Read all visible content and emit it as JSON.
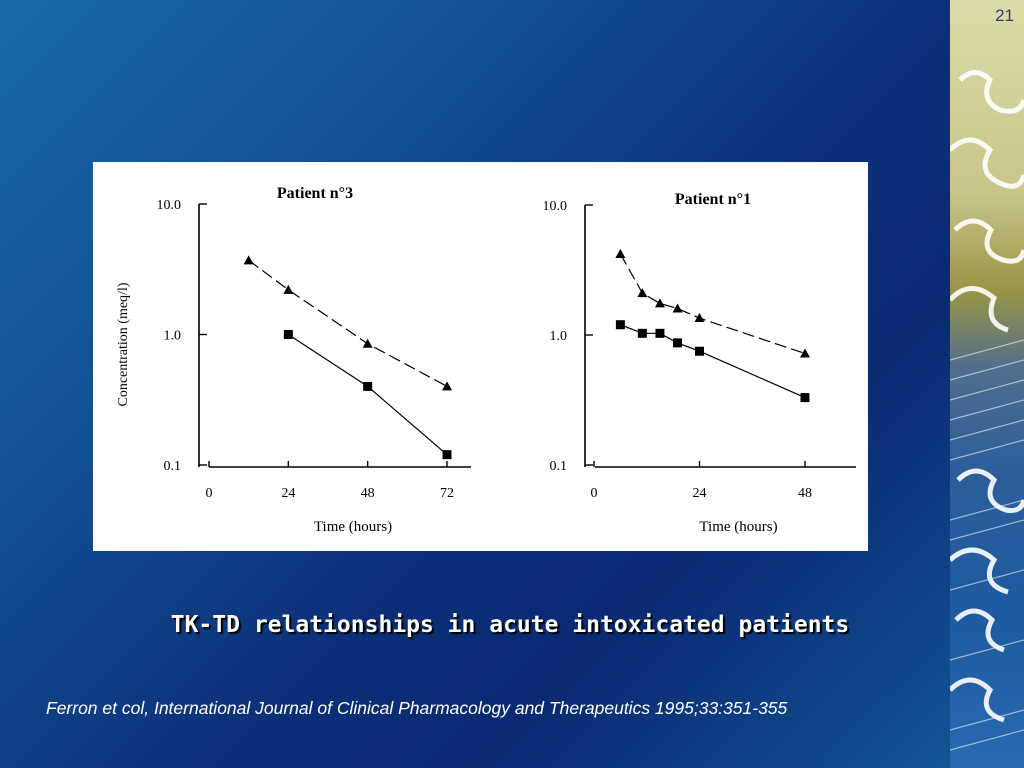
{
  "slide": {
    "page_number": "21",
    "caption": "TK-TD relationships in acute intoxicated patients",
    "citation": "Ferron et col, International Journal of Clinical Pharmacology and Therapeutics 1995;33:351-355",
    "colors": {
      "background": "#124e92",
      "chart_bg": "#ffffff",
      "text": "#ffffff"
    }
  },
  "chart_data": [
    {
      "type": "line",
      "title": "Patient n°3",
      "xlabel": "Time (hours)",
      "ylabel": "Concentration (meq/l)",
      "yscale": "log",
      "xlim": [
        0,
        72
      ],
      "ylim": [
        0.1,
        10
      ],
      "x_ticks": [
        0,
        24,
        48,
        72
      ],
      "y_ticks": [
        {
          "value": 10,
          "label": "10.0"
        },
        {
          "value": 1,
          "label": "1.0"
        },
        {
          "value": 0.1,
          "label": "0.1"
        }
      ],
      "series": [
        {
          "marker": "triangle",
          "style": "dashed",
          "points": [
            [
              12,
              3.7
            ],
            [
              24,
              2.2
            ],
            [
              48,
              0.85
            ],
            [
              72,
              0.4
            ]
          ]
        },
        {
          "marker": "square",
          "style": "solid",
          "points": [
            [
              24,
              1.0
            ],
            [
              48,
              0.4
            ],
            [
              72,
              0.12
            ]
          ]
        }
      ]
    },
    {
      "type": "line",
      "title": "Patient n°1",
      "xlabel": "Time (hours)",
      "ylabel": "",
      "yscale": "log",
      "xlim": [
        0,
        58
      ],
      "ylim": [
        0.1,
        10
      ],
      "x_ticks": [
        0,
        24,
        48
      ],
      "y_ticks": [
        {
          "value": 10,
          "label": "10.0"
        },
        {
          "value": 1,
          "label": "1.0"
        },
        {
          "value": 0.1,
          "label": "0.1"
        }
      ],
      "series": [
        {
          "marker": "triangle",
          "style": "dashed",
          "points": [
            [
              6,
              4.2
            ],
            [
              11,
              2.1
            ],
            [
              15,
              1.75
            ],
            [
              19,
              1.6
            ],
            [
              24,
              1.35
            ],
            [
              48,
              0.72
            ]
          ]
        },
        {
          "marker": "square",
          "style": "solid",
          "points": [
            [
              6,
              1.2
            ],
            [
              11,
              1.03
            ],
            [
              15,
              1.03
            ],
            [
              19,
              0.87
            ],
            [
              24,
              0.75
            ],
            [
              48,
              0.33
            ]
          ]
        }
      ]
    }
  ]
}
